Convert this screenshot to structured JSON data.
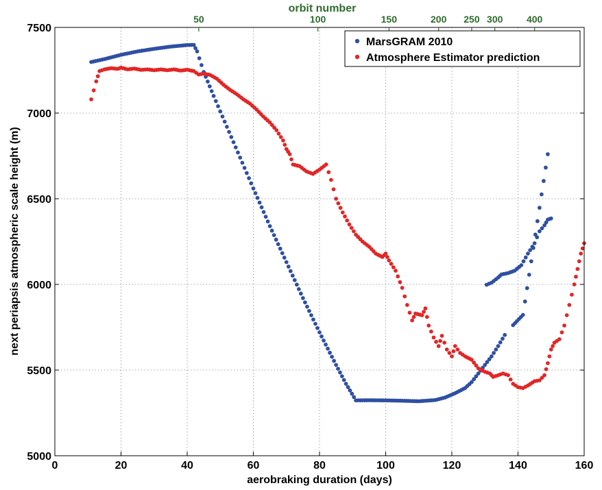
{
  "chart_data": {
    "type": "scatter",
    "xlabel": "aerobraking duration (days)",
    "ylabel": "next periapsis atmospheric scale height (m)",
    "top_axis_label": "orbit number",
    "xlim": [
      0,
      160
    ],
    "ylim": [
      5000,
      7500
    ],
    "x_ticks": [
      0,
      20,
      40,
      60,
      80,
      100,
      120,
      140,
      160
    ],
    "y_ticks": [
      5000,
      5500,
      6000,
      6500,
      7000,
      7500
    ],
    "top_ticks": [
      {
        "label": "50",
        "x": 43.5
      },
      {
        "label": "100",
        "x": 79.5
      },
      {
        "label": "150",
        "x": 101
      },
      {
        "label": "200",
        "x": 116
      },
      {
        "label": "250",
        "x": 126
      },
      {
        "label": "300",
        "x": 133
      },
      {
        "label": "400",
        "x": 145
      }
    ],
    "grid": true,
    "legend_position": "top-right",
    "colors": {
      "marsgram": "#2e4fa3",
      "estimator": "#e32626",
      "top_axis": "#2e6b2e"
    },
    "series": [
      {
        "name": "MarsGRAM 2010",
        "color": "#2e4fa3",
        "segments": [
          [
            [
              11,
              7298
            ],
            [
              15,
              7315
            ],
            [
              20,
              7340
            ],
            [
              25,
              7360
            ],
            [
              30,
              7375
            ],
            [
              35,
              7388
            ],
            [
              40,
              7397
            ],
            [
              42,
              7398
            ],
            [
              43,
              7360
            ],
            [
              45,
              7240
            ],
            [
              48,
              7100
            ],
            [
              52,
              6920
            ],
            [
              56,
              6740
            ],
            [
              60,
              6560
            ],
            [
              65,
              6340
            ],
            [
              70,
              6130
            ],
            [
              75,
              5920
            ],
            [
              80,
              5720
            ],
            [
              85,
              5530
            ],
            [
              88,
              5420
            ],
            [
              91,
              5323
            ],
            [
              95,
              5324
            ],
            [
              100,
              5323
            ],
            [
              105,
              5321
            ],
            [
              110,
              5318
            ],
            [
              115,
              5325
            ],
            [
              118,
              5340
            ],
            [
              121,
              5365
            ],
            [
              124,
              5395
            ],
            [
              126,
              5430
            ],
            [
              128,
              5480
            ],
            [
              130,
              5530
            ],
            [
              132,
              5580
            ],
            [
              134,
              5640
            ],
            [
              136,
              5705
            ]
          ],
          [
            [
              130.5,
              5998
            ],
            [
              132,
              6010
            ],
            [
              134,
              6040
            ],
            [
              135,
              6058
            ],
            [
              137,
              6066
            ],
            [
              139,
              6080
            ],
            [
              141,
              6112
            ],
            [
              143,
              6180
            ],
            [
              145,
              6240
            ],
            [
              146.5,
              6310
            ],
            [
              148,
              6345
            ],
            [
              149,
              6378
            ],
            [
              150,
              6385
            ]
          ],
          [
            [
              138.5,
              5762
            ],
            [
              141.5,
              5822
            ],
            [
              149,
              6760
            ]
          ]
        ]
      },
      {
        "name": "Atmosphere Estimator prediction",
        "color": "#e32626",
        "segments": [
          [
            [
              11,
              7080
            ],
            [
              12.5,
              7185
            ],
            [
              13.5,
              7245
            ],
            [
              15,
              7255
            ],
            [
              17,
              7262
            ],
            [
              19,
              7258
            ],
            [
              20,
              7265
            ],
            [
              22,
              7255
            ],
            [
              24,
              7260
            ],
            [
              26,
              7252
            ],
            [
              28,
              7255
            ],
            [
              30,
              7250
            ],
            [
              32,
              7255
            ],
            [
              34,
              7250
            ],
            [
              36,
              7255
            ],
            [
              38,
              7248
            ],
            [
              40,
              7253
            ],
            [
              42,
              7245
            ],
            [
              43.5,
              7225
            ],
            [
              45,
              7230
            ],
            [
              47,
              7222
            ],
            [
              49,
              7200
            ],
            [
              51,
              7165
            ],
            [
              53,
              7135
            ],
            [
              55,
              7110
            ],
            [
              57,
              7080
            ],
            [
              59,
              7055
            ],
            [
              61,
              7020
            ],
            [
              63,
              6980
            ],
            [
              65,
              6945
            ],
            [
              67,
              6900
            ],
            [
              69,
              6840
            ],
            [
              70,
              6790
            ],
            [
              71,
              6760
            ],
            [
              72,
              6700
            ],
            [
              74,
              6690
            ],
            [
              76,
              6660
            ],
            [
              78,
              6645
            ],
            [
              80,
              6670
            ],
            [
              82,
              6700
            ],
            [
              83.5,
              6610
            ],
            [
              85,
              6500
            ],
            [
              87,
              6420
            ],
            [
              89,
              6350
            ],
            [
              91,
              6290
            ],
            [
              93,
              6250
            ],
            [
              95,
              6220
            ],
            [
              97,
              6180
            ],
            [
              99,
              6160
            ],
            [
              100,
              6180
            ],
            [
              101,
              6140
            ],
            [
              103,
              6080
            ],
            [
              105,
              5980
            ],
            [
              106.5,
              5880
            ],
            [
              108,
              5790
            ],
            [
              109,
              5830
            ],
            [
              111,
              5820
            ],
            [
              112,
              5860
            ],
            [
              113,
              5760
            ],
            [
              114.5,
              5690
            ],
            [
              116,
              5640
            ],
            [
              117,
              5700
            ],
            [
              118.5,
              5620
            ],
            [
              120,
              5580
            ],
            [
              121,
              5640
            ],
            [
              122.5,
              5600
            ],
            [
              124,
              5580
            ],
            [
              126,
              5560
            ],
            [
              128,
              5510
            ],
            [
              130,
              5490
            ],
            [
              131.5,
              5480
            ],
            [
              132.5,
              5460
            ],
            [
              134,
              5470
            ],
            [
              135.5,
              5480
            ],
            [
              137,
              5470
            ],
            [
              138.5,
              5420
            ],
            [
              140,
              5400
            ],
            [
              141.5,
              5395
            ],
            [
              143,
              5410
            ],
            [
              145,
              5435
            ],
            [
              146.5,
              5440
            ],
            [
              148,
              5470
            ],
            [
              149,
              5540
            ],
            [
              150,
              5620
            ],
            [
              151,
              5660
            ],
            [
              152.5,
              5680
            ],
            [
              154,
              5760
            ],
            [
              155.5,
              5880
            ],
            [
              157,
              6000
            ],
            [
              158,
              6090
            ],
            [
              159,
              6180
            ],
            [
              160,
              6240
            ]
          ]
        ]
      }
    ]
  }
}
